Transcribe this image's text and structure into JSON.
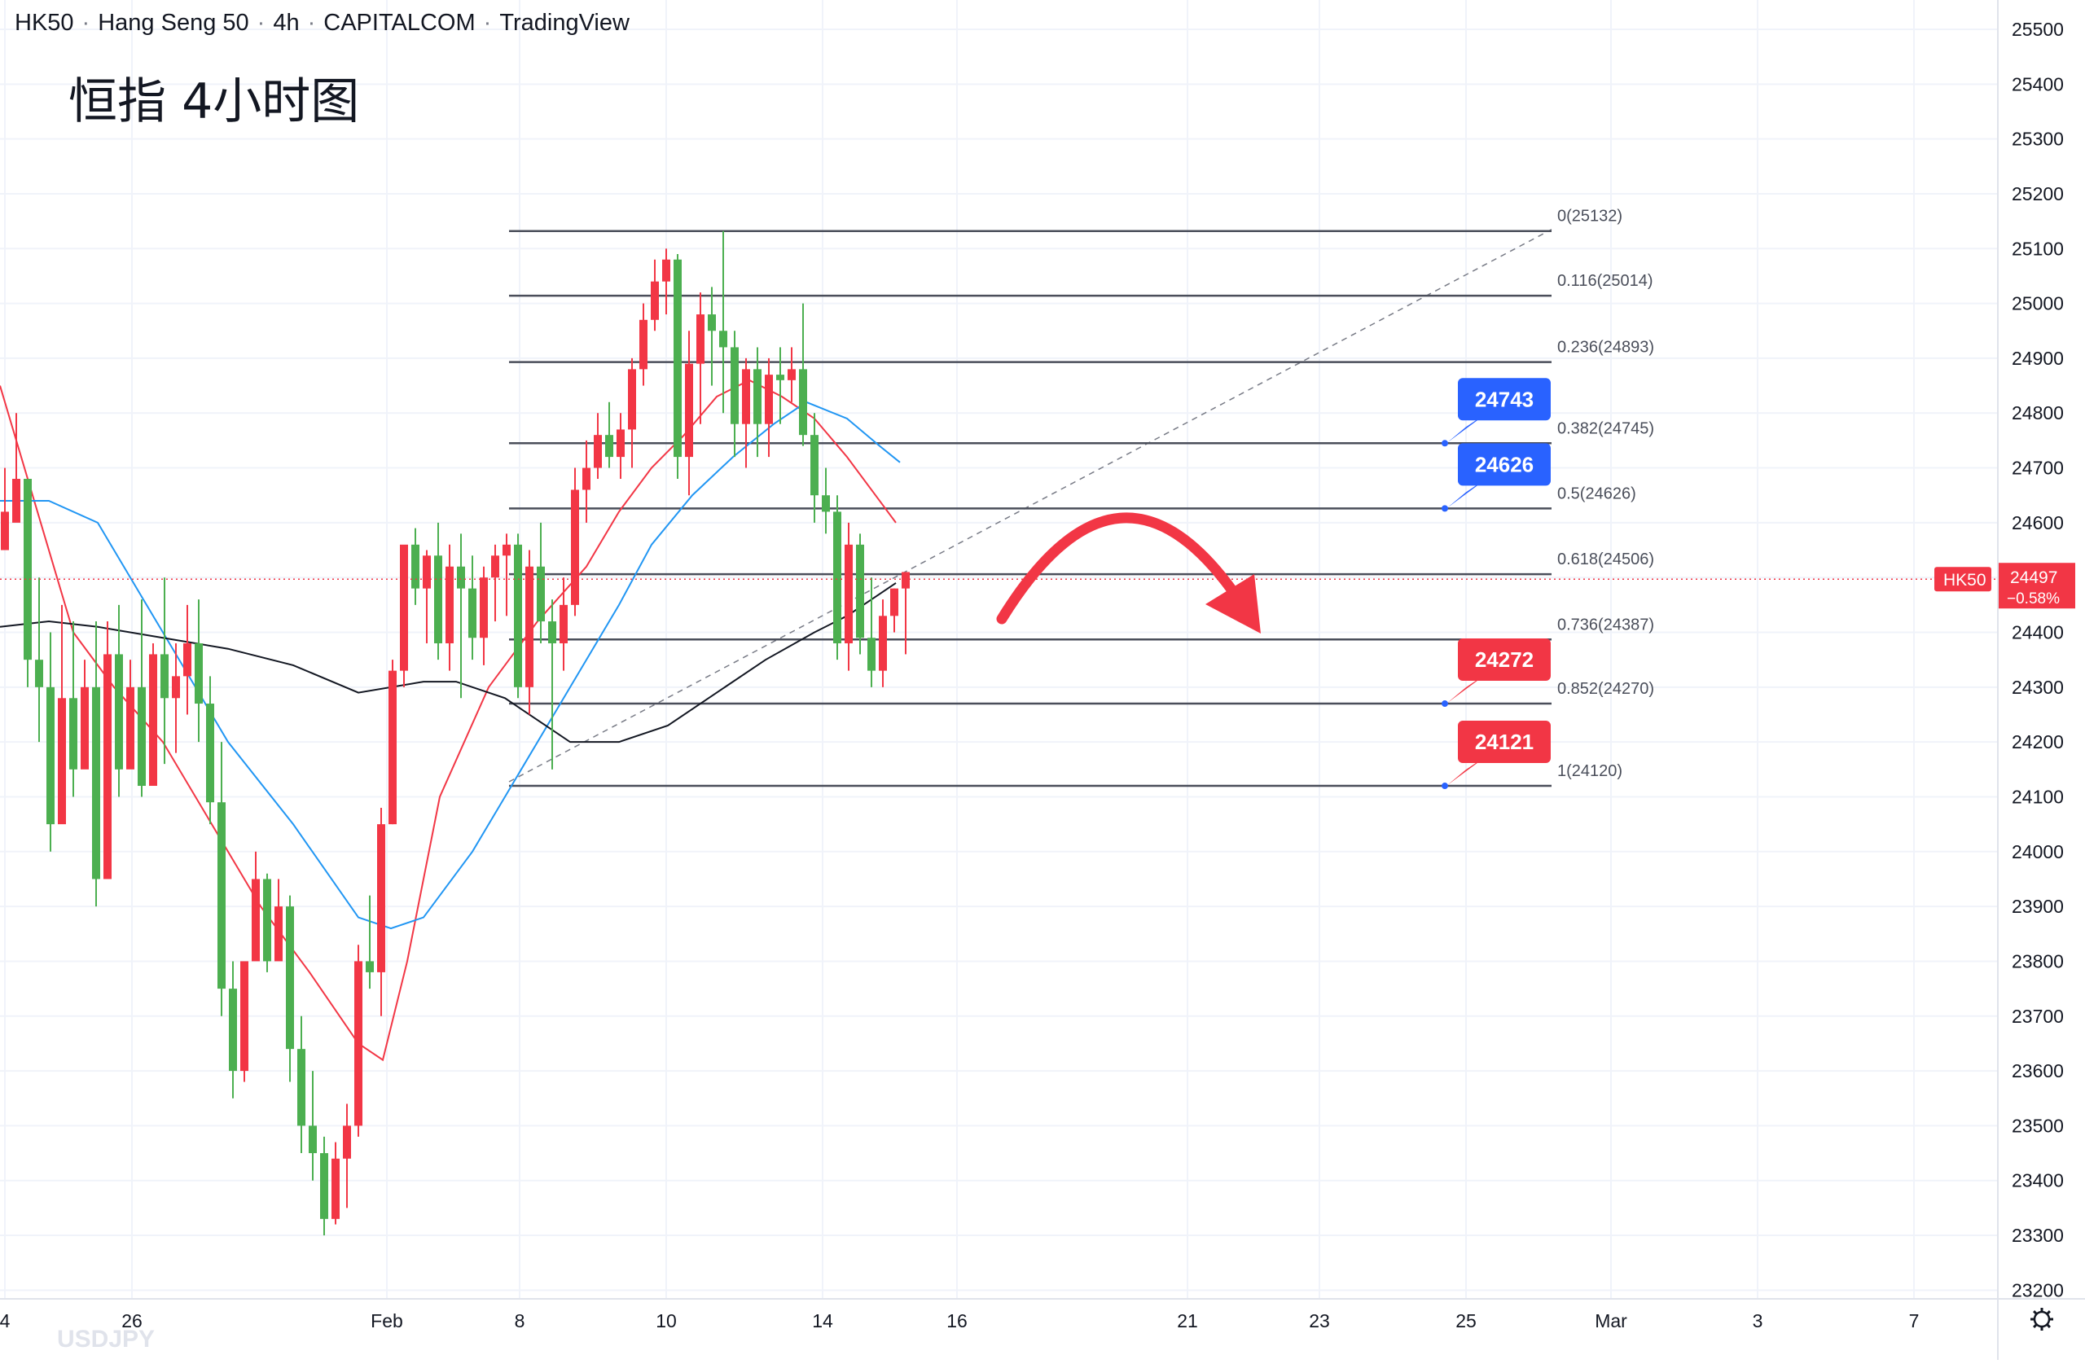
{
  "header": {
    "symbol": "HK50",
    "name": "Hang Seng 50",
    "interval": "4h",
    "broker": "CAPITALCOM",
    "platform": "TradingView"
  },
  "annotation_title": "恒指 4小时图",
  "watermark": "USDJPY",
  "price_scale": {
    "ticks": [
      "25500",
      "25400",
      "25300",
      "25200",
      "25100",
      "25000",
      "24900",
      "24800",
      "24700",
      "24600",
      "24500",
      "24400",
      "24300",
      "24200",
      "24100",
      "24000",
      "23900",
      "23800",
      "23700",
      "23600",
      "23500",
      "23400",
      "23300",
      "23200"
    ],
    "current_symbol_tag": "HK50",
    "current_price": "24497",
    "current_change": "−0.58%",
    "colors": {
      "up": "#26a69a",
      "down": "#ef5350",
      "candle_up": "#4caf50",
      "candle_down": "#f23645"
    }
  },
  "time_scale": {
    "labels": [
      "4",
      "26",
      "Feb",
      "8",
      "10",
      "14",
      "16",
      "21",
      "23",
      "25",
      "Mar",
      "3",
      "7"
    ]
  },
  "fibonacci": {
    "levels": [
      {
        "ratio": "0",
        "price": 25132,
        "label": "0(25132)"
      },
      {
        "ratio": "0.116",
        "price": 25014,
        "label": "0.116(25014)"
      },
      {
        "ratio": "0.236",
        "price": 24893,
        "label": "0.236(24893)"
      },
      {
        "ratio": "0.382",
        "price": 24745,
        "label": "0.382(24745)"
      },
      {
        "ratio": "0.5",
        "price": 24626,
        "label": "0.5(24626)"
      },
      {
        "ratio": "0.618",
        "price": 24506,
        "label": "0.618(24506)"
      },
      {
        "ratio": "0.736",
        "price": 24387,
        "label": "0.736(24387)"
      },
      {
        "ratio": "0.852",
        "price": 24270,
        "label": "0.852(24270)"
      },
      {
        "ratio": "1",
        "price": 24120,
        "label": "1(24120)"
      }
    ]
  },
  "price_callouts": [
    {
      "text": "24743",
      "color": "#2962ff",
      "price": 24745
    },
    {
      "text": "24626",
      "color": "#2962ff",
      "price": 24626
    },
    {
      "text": "24272",
      "color": "#f23645",
      "price": 24270
    },
    {
      "text": "24121",
      "color": "#f23645",
      "price": 24120
    }
  ],
  "arrow_color": "#f23645",
  "settings_icon": "gear-icon"
}
